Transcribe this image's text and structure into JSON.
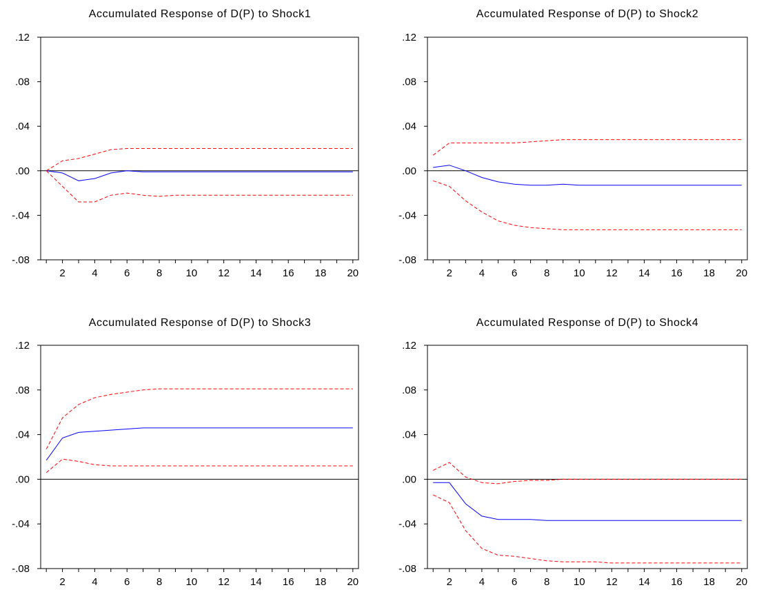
{
  "chart_data": [
    {
      "type": "line",
      "title": "Accumulated Response of D(P) to Shock1",
      "x": [
        1,
        2,
        3,
        4,
        5,
        6,
        7,
        8,
        9,
        10,
        11,
        12,
        13,
        14,
        15,
        16,
        17,
        18,
        19,
        20
      ],
      "xticks": [
        "2",
        "4",
        "6",
        "8",
        "10",
        "12",
        "14",
        "16",
        "18",
        "20"
      ],
      "yticks": [
        ".12",
        ".08",
        ".04",
        ".00",
        "-.04",
        "-.08"
      ],
      "ylim": [
        -0.08,
        0.12
      ],
      "xlim": [
        0.65,
        20.35
      ],
      "zero_line": true,
      "series": [
        {
          "role": "upper",
          "color": "#ff0000",
          "dashed": true,
          "values": [
            0.0,
            0.009,
            0.011,
            0.015,
            0.019,
            0.02,
            0.02,
            0.02,
            0.02,
            0.02,
            0.02,
            0.02,
            0.02,
            0.02,
            0.02,
            0.02,
            0.02,
            0.02,
            0.02,
            0.02
          ]
        },
        {
          "role": "response",
          "color": "#0000ff",
          "dashed": false,
          "values": [
            0.0,
            -0.002,
            -0.009,
            -0.007,
            -0.002,
            0.0,
            -0.001,
            -0.001,
            -0.001,
            -0.001,
            -0.001,
            -0.001,
            -0.001,
            -0.001,
            -0.001,
            -0.001,
            -0.001,
            -0.001,
            -0.001,
            -0.001
          ]
        },
        {
          "role": "lower",
          "color": "#ff0000",
          "dashed": true,
          "values": [
            0.0,
            -0.014,
            -0.028,
            -0.028,
            -0.022,
            -0.02,
            -0.022,
            -0.023,
            -0.022,
            -0.022,
            -0.022,
            -0.022,
            -0.022,
            -0.022,
            -0.022,
            -0.022,
            -0.022,
            -0.022,
            -0.022,
            -0.022
          ]
        }
      ]
    },
    {
      "type": "line",
      "title": "Accumulated Response of D(P) to Shock2",
      "x": [
        1,
        2,
        3,
        4,
        5,
        6,
        7,
        8,
        9,
        10,
        11,
        12,
        13,
        14,
        15,
        16,
        17,
        18,
        19,
        20
      ],
      "xticks": [
        "2",
        "4",
        "6",
        "8",
        "10",
        "12",
        "14",
        "16",
        "18",
        "20"
      ],
      "yticks": [
        ".12",
        ".08",
        ".04",
        ".00",
        "-.04",
        "-.08"
      ],
      "ylim": [
        -0.08,
        0.12
      ],
      "xlim": [
        0.65,
        20.35
      ],
      "zero_line": true,
      "series": [
        {
          "role": "upper",
          "color": "#ff0000",
          "dashed": true,
          "values": [
            0.014,
            0.025,
            0.025,
            0.025,
            0.025,
            0.025,
            0.026,
            0.027,
            0.028,
            0.028,
            0.028,
            0.028,
            0.028,
            0.028,
            0.028,
            0.028,
            0.028,
            0.028,
            0.028,
            0.028
          ]
        },
        {
          "role": "response",
          "color": "#0000ff",
          "dashed": false,
          "values": [
            0.003,
            0.005,
            0.0,
            -0.006,
            -0.01,
            -0.012,
            -0.013,
            -0.013,
            -0.012,
            -0.013,
            -0.013,
            -0.013,
            -0.013,
            -0.013,
            -0.013,
            -0.013,
            -0.013,
            -0.013,
            -0.013,
            -0.013
          ]
        },
        {
          "role": "lower",
          "color": "#ff0000",
          "dashed": true,
          "values": [
            -0.009,
            -0.014,
            -0.027,
            -0.037,
            -0.045,
            -0.049,
            -0.051,
            -0.052,
            -0.053,
            -0.053,
            -0.053,
            -0.053,
            -0.053,
            -0.053,
            -0.053,
            -0.053,
            -0.053,
            -0.053,
            -0.053,
            -0.053
          ]
        }
      ]
    },
    {
      "type": "line",
      "title": "Accumulated Response of D(P) to Shock3",
      "x": [
        1,
        2,
        3,
        4,
        5,
        6,
        7,
        8,
        9,
        10,
        11,
        12,
        13,
        14,
        15,
        16,
        17,
        18,
        19,
        20
      ],
      "xticks": [
        "2",
        "4",
        "6",
        "8",
        "10",
        "12",
        "14",
        "16",
        "18",
        "20"
      ],
      "yticks": [
        ".12",
        ".08",
        ".04",
        ".00",
        "-.04",
        "-.08"
      ],
      "ylim": [
        -0.08,
        0.12
      ],
      "xlim": [
        0.65,
        20.35
      ],
      "zero_line": true,
      "series": [
        {
          "role": "upper",
          "color": "#ff0000",
          "dashed": true,
          "values": [
            0.027,
            0.055,
            0.067,
            0.073,
            0.076,
            0.078,
            0.08,
            0.081,
            0.081,
            0.081,
            0.081,
            0.081,
            0.081,
            0.081,
            0.081,
            0.081,
            0.081,
            0.081,
            0.081,
            0.081
          ]
        },
        {
          "role": "response",
          "color": "#0000ff",
          "dashed": false,
          "values": [
            0.017,
            0.037,
            0.042,
            0.043,
            0.044,
            0.045,
            0.046,
            0.046,
            0.046,
            0.046,
            0.046,
            0.046,
            0.046,
            0.046,
            0.046,
            0.046,
            0.046,
            0.046,
            0.046,
            0.046
          ]
        },
        {
          "role": "lower",
          "color": "#ff0000",
          "dashed": true,
          "values": [
            0.006,
            0.018,
            0.016,
            0.013,
            0.012,
            0.012,
            0.012,
            0.012,
            0.012,
            0.012,
            0.012,
            0.012,
            0.012,
            0.012,
            0.012,
            0.012,
            0.012,
            0.012,
            0.012,
            0.012
          ]
        }
      ]
    },
    {
      "type": "line",
      "title": "Accumulated Response of D(P) to Shock4",
      "x": [
        1,
        2,
        3,
        4,
        5,
        6,
        7,
        8,
        9,
        10,
        11,
        12,
        13,
        14,
        15,
        16,
        17,
        18,
        19,
        20
      ],
      "xticks": [
        "2",
        "4",
        "6",
        "8",
        "10",
        "12",
        "14",
        "16",
        "18",
        "20"
      ],
      "yticks": [
        ".12",
        ".08",
        ".04",
        ".00",
        "-.04",
        "-.08"
      ],
      "ylim": [
        -0.08,
        0.12
      ],
      "xlim": [
        0.65,
        20.35
      ],
      "zero_line": true,
      "series": [
        {
          "role": "upper",
          "color": "#ff0000",
          "dashed": true,
          "values": [
            0.008,
            0.015,
            0.002,
            -0.003,
            -0.004,
            -0.002,
            -0.001,
            -0.001,
            0.0,
            0.0,
            0.0,
            0.0,
            0.0,
            0.0,
            0.0,
            0.0,
            0.0,
            0.0,
            0.0,
            0.0
          ]
        },
        {
          "role": "response",
          "color": "#0000ff",
          "dashed": false,
          "values": [
            -0.003,
            -0.003,
            -0.022,
            -0.033,
            -0.036,
            -0.036,
            -0.036,
            -0.037,
            -0.037,
            -0.037,
            -0.037,
            -0.037,
            -0.037,
            -0.037,
            -0.037,
            -0.037,
            -0.037,
            -0.037,
            -0.037,
            -0.037
          ]
        },
        {
          "role": "lower",
          "color": "#ff0000",
          "dashed": true,
          "values": [
            -0.014,
            -0.021,
            -0.046,
            -0.062,
            -0.068,
            -0.069,
            -0.071,
            -0.073,
            -0.074,
            -0.074,
            -0.074,
            -0.075,
            -0.075,
            -0.075,
            -0.075,
            -0.075,
            -0.075,
            -0.075,
            -0.075,
            -0.075
          ]
        }
      ]
    }
  ]
}
